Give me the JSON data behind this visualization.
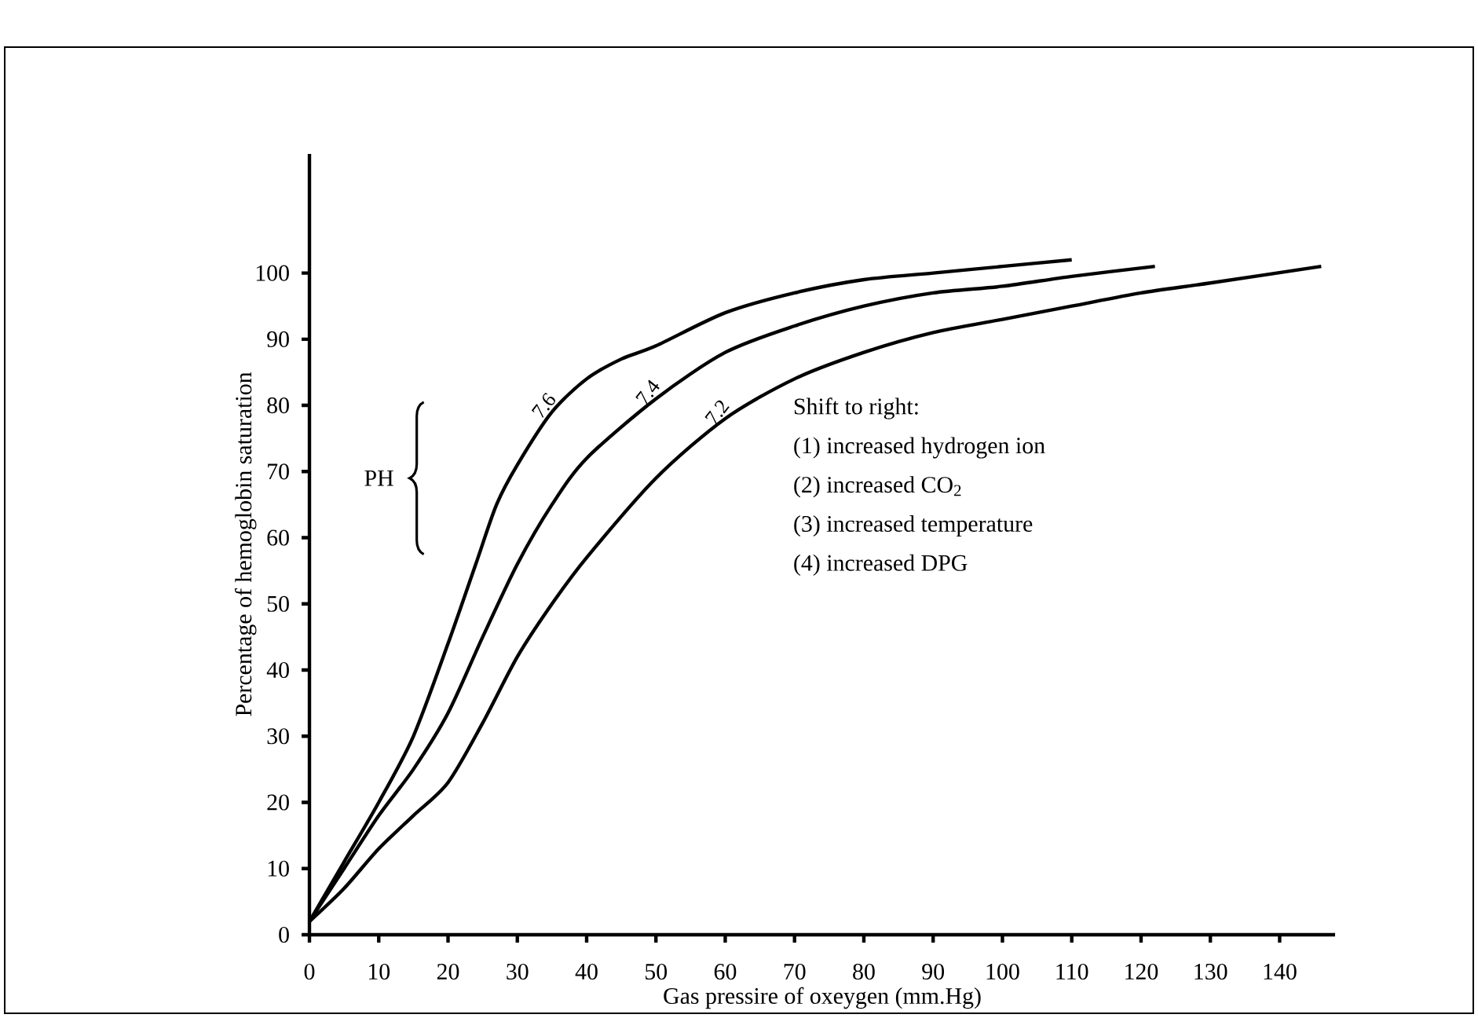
{
  "chart_data": {
    "type": "line",
    "xlabel": "Gas pressire of oxeygen (mm.Hg)",
    "ylabel": "Percentage of hemoglobin saturation",
    "xlim": [
      0,
      148
    ],
    "ylim": [
      0,
      118
    ],
    "xticks": [
      0,
      10,
      20,
      30,
      40,
      50,
      60,
      70,
      80,
      90,
      100,
      110,
      120,
      130,
      140
    ],
    "yticks": [
      0,
      10,
      20,
      30,
      40,
      50,
      60,
      70,
      80,
      90,
      100
    ],
    "legend": false,
    "grid": false,
    "marker": "none",
    "line_style": "solid",
    "annotations": [
      "PH",
      "Shift to right:",
      "(1) increased hydrogen ion",
      "(2) increased CO$_{2}$",
      "(3) increased temperature",
      "(4) increased DPG"
    ],
    "series": [
      {
        "name": "7.6",
        "color": "#000000",
        "x": [
          0,
          5,
          10,
          15,
          20,
          24,
          27,
          30,
          35,
          40,
          45,
          50,
          60,
          70,
          80,
          90,
          100,
          110
        ],
        "values": [
          2,
          11,
          20,
          30,
          44,
          56,
          65,
          71,
          79,
          84,
          87,
          89,
          94,
          97,
          99,
          100,
          101,
          102
        ]
      },
      {
        "name": "7.4",
        "color": "#000000",
        "x": [
          0,
          5,
          10,
          15,
          20,
          25,
          30,
          35,
          40,
          50,
          60,
          70,
          80,
          90,
          100,
          110,
          122
        ],
        "values": [
          2,
          10,
          18,
          25,
          33.5,
          45,
          56,
          65,
          72,
          81,
          88,
          92,
          95,
          97,
          98,
          99.5,
          101
        ]
      },
      {
        "name": "7.2",
        "color": "#000000",
        "x": [
          0,
          5,
          10,
          15,
          20,
          25,
          30,
          35,
          40,
          50,
          60,
          70,
          80,
          90,
          100,
          110,
          120,
          130,
          146
        ],
        "values": [
          2,
          7,
          13,
          18,
          23,
          32,
          42,
          50,
          57,
          69,
          78,
          84,
          88,
          91,
          93,
          95,
          97,
          98.5,
          101
        ]
      }
    ]
  }
}
